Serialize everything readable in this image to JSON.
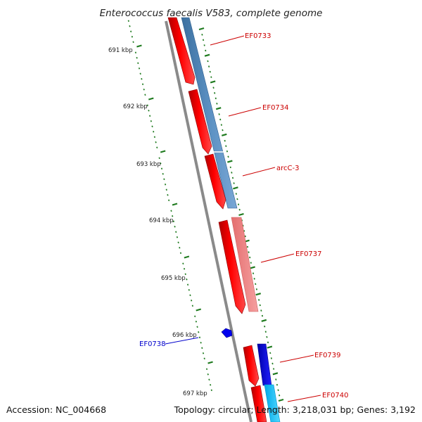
{
  "title": "Enterococcus faecalis V583, complete genome",
  "footer": {
    "accession": "Accession: NC_004668",
    "topology": "Topology: circular; Length: 3,218,031 bp; Genes: 3,192"
  },
  "ruler": {
    "labels": [
      "691 kbp",
      "692 kbp",
      "693 kbp",
      "694 kbp",
      "695 kbp",
      "696 kbp",
      "697 kbp"
    ]
  },
  "genes": {
    "ef0733": "EF0733",
    "ef0734": "EF0734",
    "arcc3": "arcC-3",
    "ef0737": "EF0737",
    "ef0738": "EF0738",
    "ef0739": "EF0739",
    "ef0740": "EF0740"
  },
  "colors": {
    "forward_gene": "#ff0000",
    "reverse_gene": "#0000ff",
    "cog_steelblue": "#4f83b8",
    "cog_salmon": "#f08080",
    "cog_cyan": "#1ec8ff",
    "ruler_tick": "#1e7a1e",
    "backbone": "#8c8c8c",
    "label_forward": "#cc0000",
    "label_reverse": "#0000cc"
  }
}
